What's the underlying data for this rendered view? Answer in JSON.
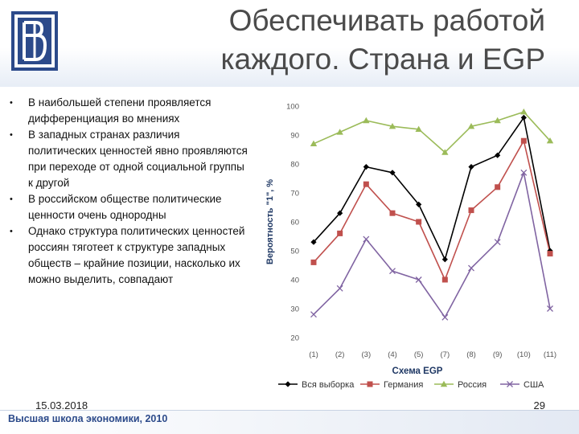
{
  "slide": {
    "title_line1": "Обеспечивать работой",
    "title_line2": "каждого. Страна и EGP",
    "bullets": [
      "В наибольшей степени проявляется дифференциация во мнениях",
      "В западных странах различия политических ценностей явно проявляются при переходе от одной социальной группы к другой",
      "В российском обществе политические ценности очень однородны",
      "Однако структура политических ценностей россиян тяготеет к структуре западных обществ – крайние позиции, насколько их можно выделить, совпадают"
    ],
    "date": "15.03.2018",
    "page_number": "29",
    "footer": "Высшая школа экономики, 2010",
    "brand_color": "#2c4a8a"
  },
  "chart_data": {
    "type": "line",
    "xlabel": "Схема EGP",
    "ylabel": "Вероятность \"1\", %",
    "categories": [
      "(1)",
      "(2)",
      "(3)",
      "(4)",
      "(5)",
      "(7)",
      "(8)",
      "(9)",
      "(10)",
      "(11)"
    ],
    "ylim": [
      20,
      100
    ],
    "yticks": [
      20,
      30,
      40,
      50,
      60,
      70,
      80,
      90,
      100
    ],
    "grid": false,
    "legend_position": "bottom",
    "series": [
      {
        "name": "Вся выборка",
        "color": "#000000",
        "marker": "diamond",
        "values": [
          53,
          63,
          79,
          77,
          66,
          47,
          79,
          83,
          96,
          50
        ]
      },
      {
        "name": "Германия",
        "color": "#c0504d",
        "marker": "square",
        "values": [
          46,
          56,
          73,
          63,
          60,
          40,
          64,
          72,
          88,
          49
        ]
      },
      {
        "name": "Россия",
        "color": "#9bbb59",
        "marker": "triangle",
        "values": [
          87,
          91,
          95,
          93,
          92,
          84,
          93,
          95,
          98,
          88
        ]
      },
      {
        "name": "США",
        "color": "#8064a2",
        "marker": "x",
        "values": [
          28,
          37,
          54,
          43,
          40,
          27,
          44,
          53,
          77,
          30
        ]
      }
    ]
  }
}
